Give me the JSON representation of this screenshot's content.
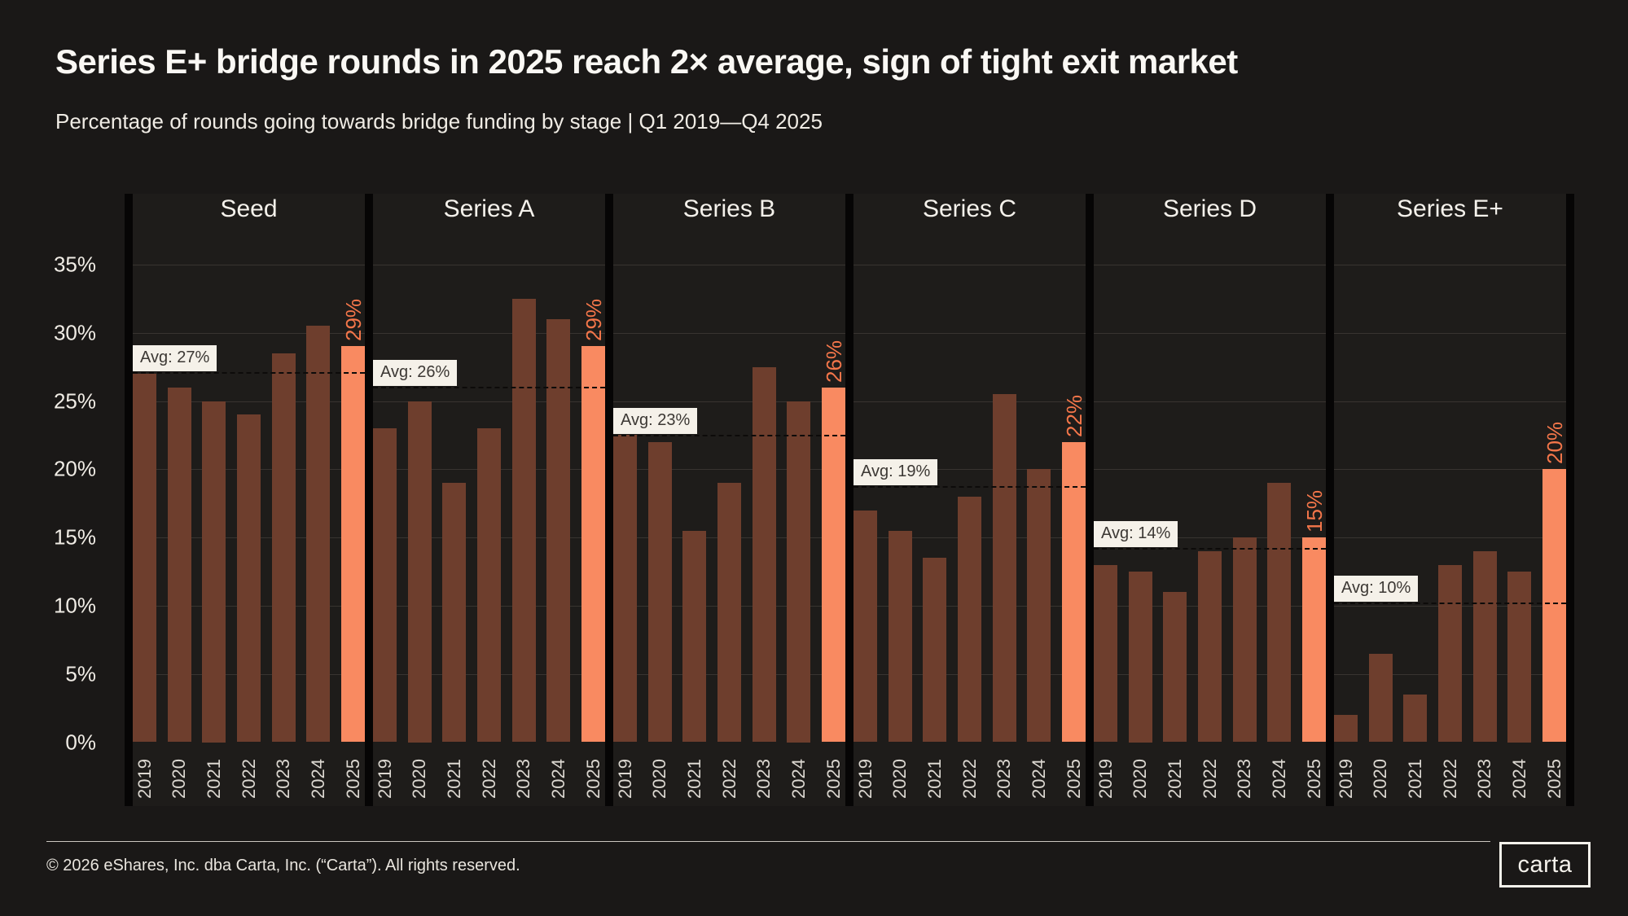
{
  "chart_data": {
    "type": "bar",
    "title": "Series E+ bridge rounds in 2025 reach 2× average, sign of tight exit market",
    "subtitle": "Percentage of rounds going towards bridge funding by stage | Q1 2019—Q4 2025",
    "categories": [
      "2019",
      "2020",
      "2021",
      "2022",
      "2023",
      "2024",
      "2025"
    ],
    "ylabel": "",
    "xlabel": "",
    "ylim": [
      0,
      37
    ],
    "grid": "horizontal",
    "yticks": [
      {
        "value": 35,
        "label": "35%"
      },
      {
        "value": 30,
        "label": "30%"
      },
      {
        "value": 25,
        "label": "25%"
      },
      {
        "value": 20,
        "label": "20%"
      },
      {
        "value": 15,
        "label": "15%"
      },
      {
        "value": 10,
        "label": "10%"
      },
      {
        "value": 5,
        "label": "5%"
      },
      {
        "value": 0,
        "label": "0%"
      }
    ],
    "highlight_category": "2025",
    "panels": [
      {
        "name": "Seed",
        "values": [
          27,
          26,
          25,
          24,
          28.5,
          30.5,
          29
        ],
        "avg_label": "Avg: 27%",
        "highlight_label": "29%"
      },
      {
        "name": "Series A",
        "values": [
          23,
          25,
          19,
          23,
          32.5,
          31,
          29
        ],
        "avg_label": "Avg: 26%",
        "highlight_label": "29%"
      },
      {
        "name": "Series B",
        "values": [
          22.5,
          22,
          15.5,
          19,
          27.5,
          25,
          26
        ],
        "avg_label": "Avg: 23%",
        "highlight_label": "26%"
      },
      {
        "name": "Series C",
        "values": [
          17,
          15.5,
          13.5,
          18,
          25.5,
          20,
          22
        ],
        "avg_label": "Avg: 19%",
        "highlight_label": "22%"
      },
      {
        "name": "Series D",
        "values": [
          13,
          12.5,
          11,
          14,
          15,
          19,
          15
        ],
        "avg_label": "Avg: 14%",
        "highlight_label": "15%"
      },
      {
        "name": "Series E+",
        "values": [
          2,
          6.5,
          3.5,
          13,
          14,
          12.5,
          20
        ],
        "avg_label": "Avg: 10%",
        "highlight_label": "20%"
      }
    ]
  },
  "colors": {
    "background": "#1a1817",
    "panel_background": "#1e1c1a",
    "bar_default": "#6e3e2d",
    "bar_highlight": "#f98a61",
    "highlight_label_text": "#f4764a",
    "avg_box_background": "#f5f1e9",
    "avg_box_text": "#3c3834",
    "gridline": "#383430",
    "separator": "#060505"
  },
  "footer": {
    "copyright": "© 2026 eShares, Inc. dba Carta, Inc. (“Carta”). All rights reserved.",
    "logo_text": "carta"
  }
}
